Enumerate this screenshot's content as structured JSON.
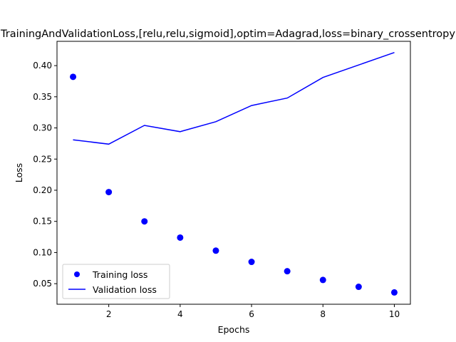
{
  "chart_data": {
    "type": "line",
    "title": "TrainingAndValidationLoss,[relu,relu,sigmoid],optim=Adagrad,loss=binary_crossentropy",
    "xlabel": "Epochs",
    "ylabel": "Loss",
    "xlim": [
      0.55,
      10.45
    ],
    "ylim": [
      0.017,
      0.439
    ],
    "xticks": [
      2,
      4,
      6,
      8,
      10
    ],
    "yticks": [
      0.05,
      0.1,
      0.15,
      0.2,
      0.25,
      0.3,
      0.35,
      0.4
    ],
    "ytick_labels": [
      "0.05",
      "0.10",
      "0.15",
      "0.20",
      "0.25",
      "0.30",
      "0.35",
      "0.40"
    ],
    "grid": false,
    "legend_position": "lower-left",
    "x": [
      1,
      2,
      3,
      4,
      5,
      6,
      7,
      8,
      9,
      10
    ],
    "series": [
      {
        "name": "Training loss",
        "style": "markers",
        "color": "#0000ff",
        "values": [
          0.382,
          0.197,
          0.15,
          0.124,
          0.103,
          0.085,
          0.07,
          0.056,
          0.045,
          0.036
        ]
      },
      {
        "name": "Validation loss",
        "style": "line",
        "color": "#0000ff",
        "values": [
          0.281,
          0.274,
          0.304,
          0.294,
          0.31,
          0.336,
          0.348,
          0.381,
          0.401,
          0.421
        ]
      }
    ]
  }
}
